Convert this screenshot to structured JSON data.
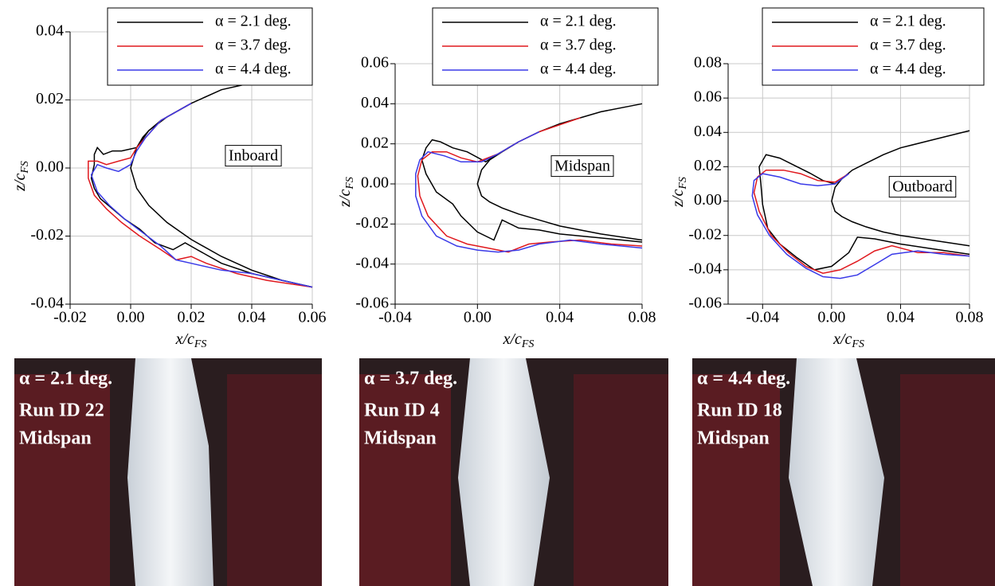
{
  "chart_data": [
    {
      "type": "line",
      "annotation": "Inboard",
      "xlabel": {
        "main": "x/c",
        "sub": "FS"
      },
      "ylabel": {
        "main": "z/c",
        "sub": "FS"
      },
      "xlim": [
        -0.02,
        0.06
      ],
      "ylim": [
        -0.04,
        0.04
      ],
      "xticks": [
        -0.02,
        {
          "value": 0,
          "label": "0.00"
        },
        0.02,
        0.04,
        0.06
      ],
      "yticks": [
        -0.04,
        -0.02,
        {
          "value": 0,
          "label": "0.00"
        },
        0.02,
        0.04
      ],
      "grid": true,
      "legend": "top-right",
      "series": [
        {
          "color": "#000000",
          "x": [
            0.06,
            0.05,
            0.04,
            0.03,
            0.02,
            0.012,
            0.006,
            0.002,
            0,
            0.002,
            0.006,
            0.012,
            0.02,
            0.03,
            0.04,
            0.05,
            0.06
          ],
          "values": [
            0.028,
            0.027,
            0.025,
            0.023,
            0.019,
            0.015,
            0.011,
            0.006,
            0,
            -0.006,
            -0.011,
            -0.016,
            -0.021,
            -0.026,
            -0.03,
            -0.033,
            -0.035
          ]
        },
        {
          "name": "α = 2.1 deg.",
          "color": "#000000",
          "x": [
            0.02,
            0.01,
            0.006,
            0.004,
            0.002,
            -0.003,
            -0.006,
            -0.009,
            -0.011,
            -0.012,
            -0.012,
            -0.013,
            -0.012,
            -0.01,
            -0.006,
            -0.002,
            0.003,
            0.008,
            0.014,
            0.018,
            0.022,
            0.03,
            0.04,
            0.05,
            0.06
          ],
          "values": [
            0.019,
            0.014,
            0.011,
            0.009,
            0.006,
            0.005,
            0.005,
            0.004,
            0.006,
            0.004,
            0.001,
            -0.003,
            -0.006,
            -0.009,
            -0.012,
            -0.015,
            -0.018,
            -0.022,
            -0.024,
            -0.022,
            -0.024,
            -0.028,
            -0.031,
            -0.033,
            -0.035
          ]
        },
        {
          "name": "α = 3.7 deg.",
          "color": "#e0191e",
          "x": [
            0.02,
            0.01,
            0.005,
            0.002,
            0,
            -0.004,
            -0.008,
            -0.011,
            -0.014,
            -0.014,
            -0.012,
            -0.008,
            -0.003,
            0.003,
            0.01,
            0.015,
            0.02,
            0.025,
            0.035,
            0.045,
            0.06
          ],
          "values": [
            0.019,
            0.014,
            0.009,
            0.006,
            0.003,
            0.002,
            0.001,
            0.002,
            0.002,
            -0.003,
            -0.008,
            -0.012,
            -0.016,
            -0.02,
            -0.024,
            -0.027,
            -0.026,
            -0.028,
            -0.031,
            -0.033,
            -0.035
          ]
        },
        {
          "name": "α = 4.4 deg.",
          "color": "#3a3ae8",
          "x": [
            0.02,
            0.01,
            0.005,
            0.002,
            0,
            -0.004,
            -0.008,
            -0.011,
            -0.013,
            -0.011,
            -0.007,
            -0.002,
            0.004,
            0.01,
            0.015,
            0.02,
            0.03,
            0.04,
            0.05,
            0.06
          ],
          "values": [
            0.019,
            0.014,
            0.009,
            0.005,
            0.001,
            -0.001,
            0,
            0.001,
            -0.002,
            -0.007,
            -0.011,
            -0.015,
            -0.019,
            -0.023,
            -0.027,
            -0.028,
            -0.03,
            -0.031,
            -0.033,
            -0.035
          ]
        }
      ]
    },
    {
      "type": "line",
      "annotation": "Midspan",
      "xlabel": {
        "main": "x/c",
        "sub": "FS"
      },
      "ylabel": {
        "main": "z/c",
        "sub": "FS"
      },
      "xlim": [
        -0.04,
        0.08
      ],
      "ylim": [
        -0.06,
        0.06
      ],
      "xticks": [
        -0.04,
        {
          "value": 0,
          "label": "0.00"
        },
        0.04,
        0.08
      ],
      "yticks": [
        -0.06,
        -0.04,
        -0.02,
        {
          "value": 0,
          "label": "0.00"
        },
        0.02,
        0.04,
        0.06
      ],
      "grid": true,
      "legend": "top-right",
      "series": [
        {
          "color": "#000000",
          "x": [
            0.08,
            0.06,
            0.04,
            0.03,
            0.02,
            0.012,
            0.006,
            0.002,
            0,
            0.002,
            0.006,
            0.012,
            0.02,
            0.03,
            0.04,
            0.06,
            0.08
          ],
          "values": [
            0.04,
            0.036,
            0.03,
            0.026,
            0.021,
            0.016,
            0.012,
            0.007,
            0,
            -0.006,
            -0.009,
            -0.012,
            -0.015,
            -0.018,
            -0.021,
            -0.025,
            -0.028
          ]
        },
        {
          "name": "α = 2.1 deg.",
          "color": "#000000",
          "x": [
            0.02,
            0.01,
            0.004,
            -0.005,
            -0.012,
            -0.018,
            -0.022,
            -0.025,
            -0.027,
            -0.025,
            -0.02,
            -0.012,
            -0.008,
            0,
            0.008,
            0.012,
            0.02,
            0.03,
            0.04,
            0.06,
            0.08
          ],
          "values": [
            0.021,
            0.015,
            0.011,
            0.016,
            0.018,
            0.021,
            0.022,
            0.018,
            0.012,
            0.005,
            -0.004,
            -0.01,
            -0.016,
            -0.024,
            -0.028,
            -0.018,
            -0.022,
            -0.023,
            -0.025,
            -0.027,
            -0.029
          ]
        },
        {
          "name": "α = 3.7 deg.",
          "color": "#e0191e",
          "x": [
            0.05,
            0.03,
            0.02,
            0.01,
            0,
            -0.008,
            -0.015,
            -0.022,
            -0.027,
            -0.029,
            -0.028,
            -0.024,
            -0.015,
            -0.005,
            0.005,
            0.015,
            0.025,
            0.035,
            0.05,
            0.065,
            0.08
          ],
          "values": [
            0.033,
            0.026,
            0.021,
            0.015,
            0.011,
            0.013,
            0.016,
            0.016,
            0.012,
            0.004,
            -0.006,
            -0.016,
            -0.026,
            -0.03,
            -0.032,
            -0.034,
            -0.03,
            -0.029,
            -0.028,
            -0.03,
            -0.031
          ]
        },
        {
          "name": "α = 4.4 deg.",
          "color": "#3a3ae8",
          "x": [
            0.03,
            0.02,
            0.01,
            0.002,
            -0.008,
            -0.016,
            -0.024,
            -0.028,
            -0.03,
            -0.03,
            -0.027,
            -0.02,
            -0.01,
            0,
            0.01,
            0.02,
            0.03,
            0.045,
            0.06,
            0.08
          ],
          "values": [
            0.026,
            0.021,
            0.015,
            0.011,
            0.011,
            0.014,
            0.016,
            0.012,
            0.005,
            -0.006,
            -0.016,
            -0.026,
            -0.031,
            -0.033,
            -0.034,
            -0.033,
            -0.03,
            -0.028,
            -0.03,
            -0.032
          ]
        }
      ]
    },
    {
      "type": "line",
      "annotation": "Outboard",
      "xlabel": {
        "main": "x/c",
        "sub": "FS"
      },
      "ylabel": {
        "main": "z/c",
        "sub": "FS"
      },
      "xlim": [
        -0.06,
        0.08
      ],
      "ylim": [
        -0.06,
        0.08
      ],
      "xticks": [
        -0.04,
        {
          "value": 0,
          "label": "0.00"
        },
        0.04,
        0.08
      ],
      "yticks": [
        -0.06,
        -0.04,
        -0.02,
        {
          "value": 0,
          "label": "0.00"
        },
        0.02,
        0.04,
        0.06,
        0.08
      ],
      "grid": true,
      "legend": "top-right",
      "series": [
        {
          "color": "#000000",
          "x": [
            0.08,
            0.06,
            0.04,
            0.03,
            0.02,
            0.012,
            0.006,
            0.002,
            0,
            0.002,
            0.006,
            0.012,
            0.02,
            0.03,
            0.04,
            0.06,
            0.08
          ],
          "values": [
            0.041,
            0.036,
            0.031,
            0.027,
            0.022,
            0.018,
            0.013,
            0.008,
            0,
            -0.006,
            -0.009,
            -0.012,
            -0.015,
            -0.018,
            -0.02,
            -0.023,
            -0.026
          ]
        },
        {
          "name": "α = 2.1 deg.",
          "color": "#000000",
          "x": [
            0.01,
            0.002,
            -0.005,
            -0.012,
            -0.02,
            -0.03,
            -0.038,
            -0.042,
            -0.041,
            -0.04,
            -0.037,
            -0.03,
            -0.02,
            -0.01,
            0,
            0.01,
            0.015,
            0.025,
            0.04,
            0.06,
            0.08
          ],
          "values": [
            0.016,
            0.01,
            0.012,
            0.016,
            0.02,
            0.025,
            0.027,
            0.02,
            0.01,
            -0.002,
            -0.016,
            -0.025,
            -0.033,
            -0.04,
            -0.038,
            -0.03,
            -0.021,
            -0.022,
            -0.025,
            -0.028,
            -0.031
          ]
        },
        {
          "name": "α = 3.7 deg.",
          "color": "#e0191e",
          "x": [
            0.01,
            0.002,
            -0.008,
            -0.018,
            -0.028,
            -0.038,
            -0.043,
            -0.045,
            -0.042,
            -0.035,
            -0.025,
            -0.015,
            -0.005,
            0.005,
            0.015,
            0.025,
            0.035,
            0.05,
            0.065,
            0.08
          ],
          "values": [
            0.016,
            0.011,
            0.012,
            0.016,
            0.018,
            0.018,
            0.014,
            0.005,
            -0.006,
            -0.02,
            -0.03,
            -0.038,
            -0.042,
            -0.04,
            -0.035,
            -0.029,
            -0.026,
            -0.03,
            -0.03,
            -0.032
          ]
        },
        {
          "name": "α = 4.4 deg.",
          "color": "#3a3ae8",
          "x": [
            0.01,
            0.002,
            -0.008,
            -0.018,
            -0.03,
            -0.04,
            -0.045,
            -0.046,
            -0.043,
            -0.036,
            -0.026,
            -0.015,
            -0.005,
            0.005,
            0.015,
            0.025,
            0.035,
            0.05,
            0.065,
            0.08
          ],
          "values": [
            0.016,
            0.01,
            0.009,
            0.01,
            0.014,
            0.016,
            0.012,
            0.003,
            -0.008,
            -0.02,
            -0.031,
            -0.039,
            -0.044,
            -0.045,
            -0.043,
            -0.037,
            -0.031,
            -0.029,
            -0.031,
            -0.032
          ]
        }
      ]
    }
  ],
  "photos": [
    {
      "lines": [
        "α = 2.1 deg.",
        "Run ID 22",
        "Midspan"
      ]
    },
    {
      "lines": [
        "α = 3.7 deg.",
        "Run ID 4",
        "Midspan"
      ]
    },
    {
      "lines": [
        "α = 4.4 deg.",
        "Run ID 18",
        "Midspan"
      ]
    }
  ]
}
